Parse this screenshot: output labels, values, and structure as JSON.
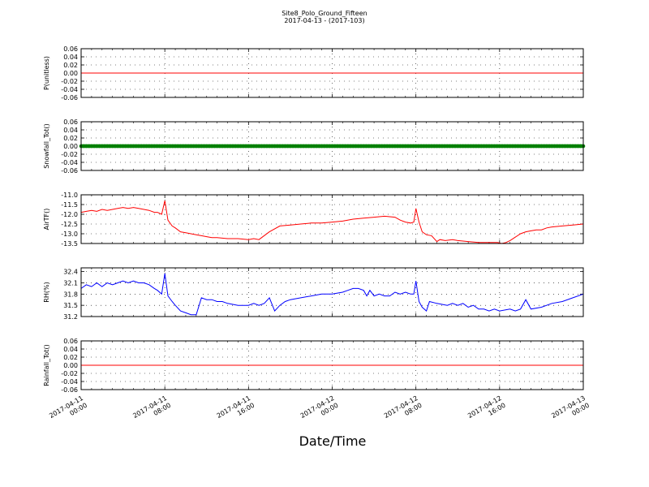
{
  "chart_data": {
    "type": "line",
    "title": "Site8_Polo_Ground_Fifteen",
    "subtitle": "2017-04-13 - (2017-103)",
    "xlabel": "Date/Time",
    "x_range": [
      "2017-04-11 00:00",
      "2017-04-13 00:00"
    ],
    "x_ticks": [
      {
        "l1": "2017-04-11",
        "l2": "00:00"
      },
      {
        "l1": "2017-04-11",
        "l2": "08:00"
      },
      {
        "l1": "2017-04-11",
        "l2": "16:00"
      },
      {
        "l1": "2017-04-12",
        "l2": "00:00"
      },
      {
        "l1": "2017-04-12",
        "l2": "08:00"
      },
      {
        "l1": "2017-04-12",
        "l2": "16:00"
      },
      {
        "l1": "2017-04-13",
        "l2": "00:00"
      }
    ],
    "grid": true,
    "panels": [
      {
        "ylabel": "P(unitless)",
        "ylim": [
          -0.06,
          0.06
        ],
        "yticks": [
          "0.06",
          "0.04",
          "0.02",
          "0.00",
          "-0.02",
          "-0.04",
          "-0.06"
        ],
        "color": "#ff0000",
        "style": "line",
        "x": [
          0,
          48
        ],
        "values": [
          0,
          0
        ]
      },
      {
        "ylabel": "Snowfall_Tot()",
        "ylim": [
          -0.06,
          0.06
        ],
        "yticks": [
          "0.06",
          "0.04",
          "0.02",
          "0.00",
          "-0.02",
          "-0.04",
          "-0.06"
        ],
        "color": "#008000",
        "style": "markers",
        "x": [
          0,
          48
        ],
        "values": [
          0,
          0
        ]
      },
      {
        "ylabel": "AirTF()",
        "ylim": [
          -13.5,
          -11.0
        ],
        "yticks": [
          "-11.0",
          "-11.5",
          "-12.0",
          "-12.5",
          "-13.0",
          "-13.5"
        ],
        "color": "#ff0000",
        "style": "line",
        "x": [
          0,
          0.5,
          1,
          1.5,
          2,
          2.5,
          3,
          3.5,
          4,
          4.5,
          5,
          5.5,
          6,
          6.5,
          7,
          7.3,
          7.7,
          8,
          8.3,
          8.7,
          9,
          9.5,
          10,
          10.5,
          11,
          11.5,
          12,
          12.5,
          13,
          14,
          15,
          16,
          16.5,
          17,
          18,
          19,
          20,
          21,
          22,
          23,
          24,
          25,
          26,
          27,
          28,
          29,
          30,
          30.5,
          31,
          31.5,
          31.8,
          32,
          32.3,
          32.6,
          33,
          33.5,
          34,
          34.3,
          34.8,
          35.5,
          36,
          37,
          38,
          39,
          39.8,
          40.2,
          40.6,
          41,
          42,
          42.5,
          43,
          43.5,
          44,
          44.5,
          45,
          46,
          47,
          48
        ],
        "values": [
          -11.9,
          -11.85,
          -11.8,
          -11.85,
          -11.75,
          -11.8,
          -11.75,
          -11.7,
          -11.65,
          -11.7,
          -11.65,
          -11.7,
          -11.75,
          -11.8,
          -11.9,
          -11.9,
          -12.0,
          -11.3,
          -12.3,
          -12.6,
          -12.7,
          -12.9,
          -12.95,
          -13.0,
          -13.05,
          -13.1,
          -13.15,
          -13.2,
          -13.2,
          -13.25,
          -13.25,
          -13.3,
          -13.25,
          -13.3,
          -12.9,
          -12.6,
          -12.55,
          -12.5,
          -12.45,
          -12.45,
          -12.4,
          -12.35,
          -12.25,
          -12.2,
          -12.15,
          -12.1,
          -12.15,
          -12.3,
          -12.4,
          -12.45,
          -12.4,
          -11.7,
          -12.4,
          -12.9,
          -13.05,
          -13.1,
          -13.4,
          -13.3,
          -13.35,
          -13.3,
          -13.35,
          -13.4,
          -13.45,
          -13.45,
          -13.45,
          -13.5,
          -13.45,
          -13.35,
          -13.0,
          -12.9,
          -12.85,
          -12.8,
          -12.8,
          -12.7,
          -12.65,
          -12.6,
          -12.55,
          -12.5
        ]
      },
      {
        "ylabel": "RH(%)",
        "ylim": [
          31.2,
          32.5
        ],
        "yticks": [
          "32.4",
          "32.1",
          "31.8",
          "31.5",
          "31.2"
        ],
        "color": "#0000ff",
        "style": "line",
        "x": [
          0,
          0.5,
          1,
          1.5,
          2,
          2.5,
          3,
          3.5,
          4,
          4.5,
          5,
          5.5,
          6,
          6.5,
          7,
          7.3,
          7.7,
          8,
          8.3,
          8.7,
          9,
          9.5,
          10,
          10.5,
          11,
          11.5,
          12,
          12.5,
          13,
          13.5,
          14,
          15,
          16,
          16.5,
          17,
          17.5,
          18,
          18.5,
          19,
          19.5,
          20,
          21,
          22,
          23,
          24,
          25,
          25.5,
          26,
          26.5,
          27,
          27.3,
          27.6,
          28,
          28.5,
          29,
          29.5,
          30,
          30.5,
          31,
          31.5,
          31.8,
          32,
          32.3,
          32.6,
          33,
          33.3,
          34,
          35,
          35.5,
          36,
          36.5,
          37,
          37.5,
          38,
          38.5,
          39,
          39.5,
          40,
          41,
          41.5,
          42,
          42.5,
          43,
          44,
          45,
          46,
          47,
          48
        ],
        "values": [
          31.95,
          32.05,
          32.0,
          32.1,
          32.0,
          32.1,
          32.05,
          32.1,
          32.15,
          32.1,
          32.15,
          32.1,
          32.1,
          32.05,
          31.95,
          31.9,
          31.8,
          32.35,
          31.75,
          31.6,
          31.5,
          31.35,
          31.3,
          31.25,
          31.25,
          31.7,
          31.65,
          31.65,
          31.6,
          31.6,
          31.55,
          31.5,
          31.5,
          31.55,
          31.5,
          31.55,
          31.7,
          31.35,
          31.5,
          31.6,
          31.65,
          31.7,
          31.75,
          31.8,
          31.8,
          31.85,
          31.9,
          31.95,
          31.95,
          31.9,
          31.75,
          31.9,
          31.75,
          31.8,
          31.75,
          31.75,
          31.85,
          31.8,
          31.85,
          31.8,
          31.8,
          32.15,
          31.6,
          31.45,
          31.35,
          31.6,
          31.55,
          31.5,
          31.55,
          31.5,
          31.55,
          31.45,
          31.5,
          31.4,
          31.4,
          31.35,
          31.4,
          31.35,
          31.4,
          31.35,
          31.4,
          31.65,
          31.4,
          31.45,
          31.55,
          31.6,
          31.7,
          31.8
        ]
      },
      {
        "ylabel": "Rainfall_Tot()",
        "ylim": [
          -0.06,
          0.06
        ],
        "yticks": [
          "0.06",
          "0.04",
          "0.02",
          "0.00",
          "-0.02",
          "-0.04",
          "-0.06"
        ],
        "color": "#ff0000",
        "style": "line",
        "x": [
          0,
          48
        ],
        "values": [
          0,
          0
        ]
      }
    ]
  }
}
